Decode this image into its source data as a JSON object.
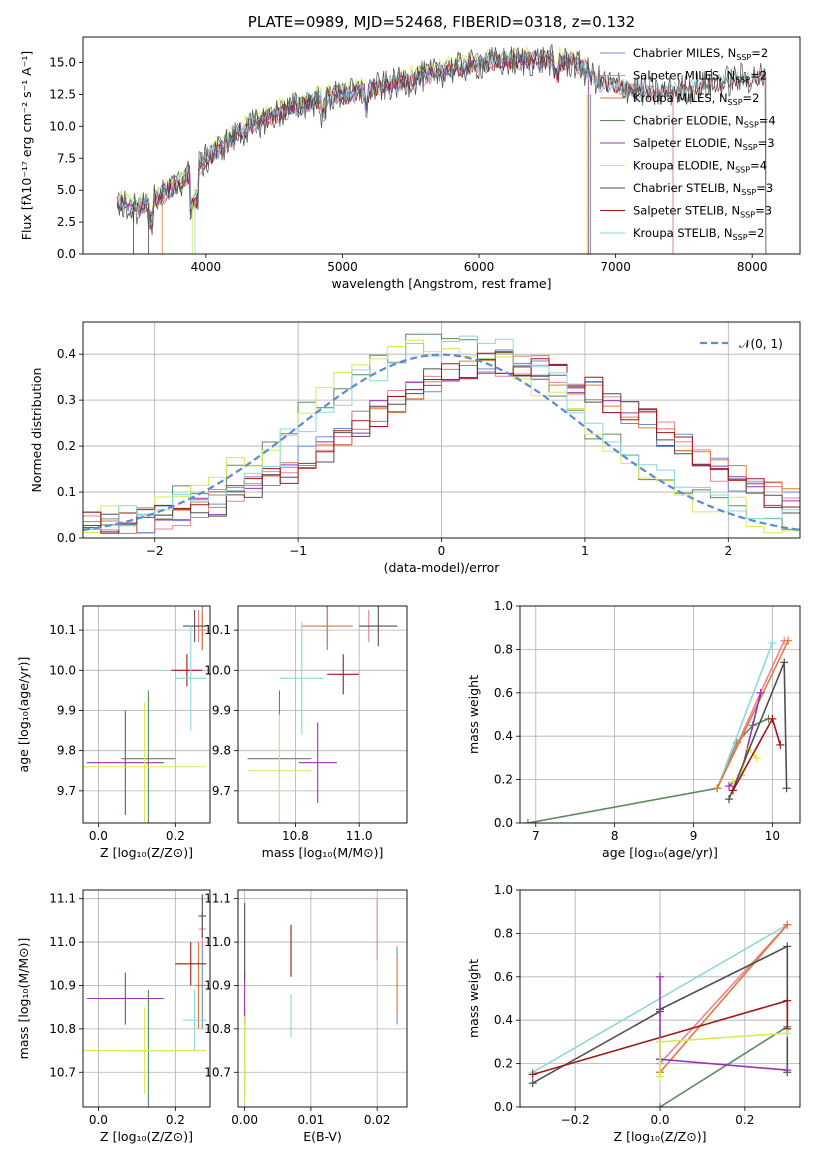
{
  "title": "PLATE=0989, MJD=52468, FIBERID=0318, z=0.132",
  "colors": {
    "Chabrier MILES": "#6a8fcf",
    "Salpeter MILES": "#e8849a",
    "Kroupa MILES": "#e07b3a",
    "Chabrier ELODIE": "#5b8a5e",
    "Salpeter ELODIE": "#9b33b5",
    "Kroupa ELODIE": "#d8ea5a",
    "Chabrier STELIB": "#505050",
    "Salpeter STELIB": "#a01818",
    "Kroupa STELIB": "#8ad8dc",
    "normal": "#5b8ad6"
  },
  "chart_data": [
    {
      "id": "spectrum",
      "type": "line",
      "xlabel": "wavelength [Angstrom, rest frame]",
      "ylabel": "Flux [fλ10⁻¹⁷ erg cm⁻² s⁻¹ A⁻¹]",
      "xlim": [
        3100,
        8350
      ],
      "ylim": [
        0,
        17
      ],
      "xticks": [
        "4000",
        "5000",
        "6000",
        "7000",
        "8000"
      ],
      "yticks": [
        "0.0",
        "2.5",
        "5.0",
        "7.5",
        "10.0",
        "12.5",
        "15.0"
      ],
      "grid": false,
      "legend": "right",
      "legend_entries": [
        {
          "name": "Chabrier MILES",
          "nssp": "2"
        },
        {
          "name": "Salpeter MILES",
          "nssp": "2"
        },
        {
          "name": "Kroupa MILES",
          "nssp": "2"
        },
        {
          "name": "Chabrier ELODIE",
          "nssp": "4"
        },
        {
          "name": "Salpeter ELODIE",
          "nssp": "3"
        },
        {
          "name": "Kroupa ELODIE",
          "nssp": "4"
        },
        {
          "name": "Chabrier STELIB",
          "nssp": "3"
        },
        {
          "name": "Salpeter STELIB",
          "nssp": "3"
        },
        {
          "name": "Kroupa STELIB",
          "nssp": "2"
        }
      ],
      "continuum": {
        "x": [
          3350,
          3500,
          3700,
          3900,
          4100,
          4300,
          4500,
          4700,
          4900,
          5100,
          5300,
          5500,
          5700,
          5900,
          6100,
          6300,
          6500,
          6700,
          6900,
          7100,
          7300,
          7500,
          7700,
          7900,
          8100
        ],
        "y": [
          3.9,
          3.6,
          4.7,
          6.4,
          8.3,
          9.8,
          10.9,
          11.7,
          12.3,
          12.6,
          13.1,
          13.6,
          14.2,
          14.7,
          15.0,
          15.1,
          15.2,
          14.9,
          13.4,
          13.0,
          12.6,
          12.9,
          13.3,
          13.7,
          13.9
        ]
      }
    },
    {
      "id": "residuals",
      "type": "step",
      "xlabel": "(data-model)/error",
      "ylabel": "Normed distribution",
      "xlim": [
        -2.5,
        2.5
      ],
      "ylim": [
        0,
        0.47
      ],
      "xticks": [
        "−2",
        "−1",
        "0",
        "1",
        "2"
      ],
      "yticks": [
        "0.0",
        "0.1",
        "0.2",
        "0.3",
        "0.4"
      ],
      "grid": true,
      "legend": "top-right",
      "legend_label": "𝒩(0, 1)",
      "bins": 40
    },
    {
      "id": "age-vs-Z",
      "type": "errorbar",
      "xlabel": "Z [log₁₀(Z/Z⊙)]",
      "ylabel": "age  [log₁₀(age/yr)]",
      "xlim": [
        -0.04,
        0.29
      ],
      "ylim": [
        9.62,
        10.16
      ],
      "xticks": [
        "0.0",
        "0.2"
      ],
      "yticks": [
        "9.7",
        "9.8",
        "9.9",
        "10.0",
        "10.1"
      ],
      "grid": true,
      "points": [
        {
          "series": "Chabrier MILES",
          "x": 0.27,
          "y": 10.11,
          "xerr": 0.01,
          "yerr": 0.06
        },
        {
          "series": "Salpeter MILES",
          "x": 0.26,
          "y": 10.11,
          "xerr": 0.01,
          "yerr": 0.04
        },
        {
          "series": "Kroupa MILES",
          "x": 0.27,
          "y": 10.1,
          "xerr": 0.01,
          "yerr": 0.05
        },
        {
          "series": "Chabrier ELODIE",
          "x": 0.13,
          "y": 9.78,
          "xerr": 0.07,
          "yerr": 0.17
        },
        {
          "series": "Salpeter ELODIE",
          "x": 0.07,
          "y": 9.77,
          "xerr": 0.1,
          "yerr": 0.13
        },
        {
          "series": "Kroupa ELODIE",
          "x": 0.12,
          "y": 9.76,
          "xerr": 0.16,
          "yerr": 0.16
        },
        {
          "series": "Chabrier STELIB",
          "x": 0.25,
          "y": 10.11,
          "xerr": 0.03,
          "yerr": 0.04
        },
        {
          "series": "Salpeter STELIB",
          "x": 0.23,
          "y": 10.0,
          "xerr": 0.04,
          "yerr": 0.04
        },
        {
          "series": "Kroupa STELIB",
          "x": 0.24,
          "y": 9.98,
          "xerr": 0.04,
          "yerr": 0.13
        }
      ]
    },
    {
      "id": "age-vs-mass",
      "type": "errorbar",
      "xlabel": "mass [log₁₀(M/M⊙)]",
      "ylabel": "",
      "xlim": [
        10.62,
        11.15
      ],
      "ylim": [
        9.62,
        10.16
      ],
      "xticks": [
        "10.8",
        "11.0"
      ],
      "yticks": [
        "9.7",
        "9.8",
        "9.9",
        "10.0",
        "10.1"
      ],
      "grid": true,
      "points": [
        {
          "series": "Chabrier MILES",
          "x": 10.9,
          "y": 10.11,
          "xerr": 0.02,
          "yerr": 0.06
        },
        {
          "series": "Salpeter MILES",
          "x": 11.03,
          "y": 10.11,
          "xerr": 0.02,
          "yerr": 0.04
        },
        {
          "series": "Kroupa MILES",
          "x": 10.9,
          "y": 10.11,
          "xerr": 0.08,
          "yerr": 0.05
        },
        {
          "series": "Chabrier ELODIE",
          "x": 10.75,
          "y": 9.78,
          "xerr": 0.1,
          "yerr": 0.17
        },
        {
          "series": "Salpeter ELODIE",
          "x": 10.87,
          "y": 9.77,
          "xerr": 0.06,
          "yerr": 0.1
        },
        {
          "series": "Kroupa ELODIE",
          "x": 10.75,
          "y": 9.75,
          "xerr": 0.1,
          "yerr": 0.14
        },
        {
          "series": "Chabrier STELIB",
          "x": 11.06,
          "y": 10.11,
          "xerr": 0.06,
          "yerr": 0.05
        },
        {
          "series": "Salpeter STELIB",
          "x": 10.95,
          "y": 9.99,
          "xerr": 0.05,
          "yerr": 0.05
        },
        {
          "series": "Kroupa STELIB",
          "x": 10.82,
          "y": 9.98,
          "xerr": 0.07,
          "yerr": 0.14
        }
      ]
    },
    {
      "id": "mass-weight-vs-age",
      "type": "line",
      "xlabel": "age  [log₁₀(age/yr)]",
      "ylabel": "mass weight",
      "xlim": [
        6.8,
        10.35
      ],
      "ylim": [
        0,
        1
      ],
      "xticks": [
        "7",
        "8",
        "9",
        "10"
      ],
      "yticks": [
        "0.0",
        "0.2",
        "0.4",
        "0.6",
        "0.8",
        "1.0"
      ],
      "grid": true,
      "series": [
        {
          "name": "Chabrier ELODIE",
          "x": [
            6.9,
            9.3,
            9.55,
            9.75,
            9.95
          ],
          "y": [
            0.0,
            0.16,
            0.37,
            0.45,
            0.48
          ]
        },
        {
          "name": "Salpeter MILES",
          "x": [
            9.3,
            10.15
          ],
          "y": [
            0.16,
            0.84
          ]
        },
        {
          "name": "Kroupa STELIB",
          "x": [
            9.3,
            10.0
          ],
          "y": [
            0.16,
            0.83
          ]
        },
        {
          "name": "Kroupa MILES",
          "x": [
            9.3,
            10.2
          ],
          "y": [
            0.16,
            0.84
          ]
        },
        {
          "name": "Salpeter ELODIE",
          "x": [
            9.45,
            9.6,
            9.85
          ],
          "y": [
            0.17,
            0.22,
            0.6
          ]
        },
        {
          "name": "Kroupa ELODIE",
          "x": [
            9.5,
            9.6,
            9.7,
            9.8
          ],
          "y": [
            0.19,
            0.22,
            0.34,
            0.3
          ]
        },
        {
          "name": "Chabrier STELIB",
          "x": [
            9.45,
            10.15,
            10.18
          ],
          "y": [
            0.11,
            0.74,
            0.16
          ]
        },
        {
          "name": "Salpeter STELIB",
          "x": [
            9.5,
            10.0,
            10.1
          ],
          "y": [
            0.15,
            0.48,
            0.36
          ]
        }
      ]
    },
    {
      "id": "mass-vs-Z",
      "type": "errorbar",
      "xlabel": "Z [log₁₀(Z/Z⊙)]",
      "ylabel": "mass [log₁₀(M/M⊙)]",
      "xlim": [
        -0.04,
        0.29
      ],
      "ylim": [
        10.62,
        11.12
      ],
      "xticks": [
        "0.0",
        "0.2"
      ],
      "yticks": [
        "10.7",
        "10.8",
        "10.9",
        "11.0",
        "11.1"
      ],
      "grid": true,
      "points": [
        {
          "series": "Chabrier MILES",
          "x": 0.27,
          "y": 10.9,
          "xerr": 0.01,
          "yerr": 0.1
        },
        {
          "series": "Salpeter MILES",
          "x": 0.27,
          "y": 11.03,
          "xerr": 0.01,
          "yerr": 0.04
        },
        {
          "series": "Kroupa MILES",
          "x": 0.26,
          "y": 10.9,
          "xerr": 0.01,
          "yerr": 0.1
        },
        {
          "series": "Chabrier ELODIE",
          "x": 0.13,
          "y": 10.75,
          "xerr": 0.07,
          "yerr": 0.14
        },
        {
          "series": "Salpeter ELODIE",
          "x": 0.07,
          "y": 10.87,
          "xerr": 0.1,
          "yerr": 0.06
        },
        {
          "series": "Kroupa ELODIE",
          "x": 0.12,
          "y": 10.75,
          "xerr": 0.16,
          "yerr": 0.1
        },
        {
          "series": "Chabrier STELIB",
          "x": 0.27,
          "y": 11.06,
          "xerr": 0.01,
          "yerr": 0.05
        },
        {
          "series": "Salpeter STELIB",
          "x": 0.24,
          "y": 10.95,
          "xerr": 0.04,
          "yerr": 0.05
        },
        {
          "series": "Kroupa STELIB",
          "x": 0.25,
          "y": 10.82,
          "xerr": 0.03,
          "yerr": 0.07
        }
      ]
    },
    {
      "id": "mass-vs-ebv",
      "type": "errorbar",
      "xlabel": "E(B-V)",
      "ylabel": "",
      "xlim": [
        -0.001,
        0.0245
      ],
      "ylim": [
        10.62,
        11.12
      ],
      "xticks": [
        "0.00",
        "0.01",
        "0.02"
      ],
      "yticks": [
        "10.7",
        "10.8",
        "10.9",
        "11.0",
        "11.1"
      ],
      "grid": true,
      "points": [
        {
          "series": "Chabrier MILES",
          "x": 0.023,
          "y": 10.9,
          "xerr": 0,
          "yerr": 0.09
        },
        {
          "series": "Salpeter MILES",
          "x": 0.02,
          "y": 11.03,
          "xerr": 0,
          "yerr": 0.07
        },
        {
          "series": "Kroupa MILES",
          "x": 0.023,
          "y": 10.9,
          "xerr": 0,
          "yerr": 0.07
        },
        {
          "series": "Chabrier ELODIE",
          "x": 0.0,
          "y": 10.75,
          "xerr": 0,
          "yerr": 0.1
        },
        {
          "series": "Salpeter ELODIE",
          "x": 0.0,
          "y": 10.87,
          "xerr": 0,
          "yerr": 0.06
        },
        {
          "series": "Kroupa ELODIE",
          "x": 0.0,
          "y": 10.73,
          "xerr": 0,
          "yerr": 0.1
        },
        {
          "series": "Chabrier STELIB",
          "x": 0.0,
          "y": 11.0,
          "xerr": 0,
          "yerr": 0.09
        },
        {
          "series": "Salpeter STELIB",
          "x": 0.007,
          "y": 10.98,
          "xerr": 0,
          "yerr": 0.06
        },
        {
          "series": "Kroupa STELIB",
          "x": 0.007,
          "y": 10.83,
          "xerr": 0,
          "yerr": 0.05
        }
      ]
    },
    {
      "id": "mass-weight-vs-Z",
      "type": "line",
      "xlabel": "Z [log₁₀(Z/Z⊙)]",
      "ylabel": "mass weight",
      "xlim": [
        -0.33,
        0.33
      ],
      "ylim": [
        0,
        1
      ],
      "xticks": [
        "−0.2",
        "0.0",
        "0.2"
      ],
      "yticks": [
        "0.0",
        "0.2",
        "0.4",
        "0.6",
        "0.8",
        "1.0"
      ],
      "grid": true,
      "series": [
        {
          "name": "Chabrier ELODIE",
          "x": [
            0.0,
            0.3
          ],
          "y": [
            0.0,
            0.37
          ]
        },
        {
          "name": "Kroupa STELIB",
          "x": [
            -0.3,
            0.3
          ],
          "y": [
            0.16,
            0.84
          ]
        },
        {
          "name": "Salpeter MILES",
          "x": [
            0.0,
            0.0,
            0.3
          ],
          "y": [
            0.16,
            0.2,
            0.84
          ]
        },
        {
          "name": "Kroupa MILES",
          "x": [
            0.0,
            0.3
          ],
          "y": [
            0.16,
            0.84
          ]
        },
        {
          "name": "Chabrier STELIB",
          "x": [
            -0.3,
            0.0,
            0.0,
            0.3,
            0.3
          ],
          "y": [
            0.11,
            0.44,
            0.45,
            0.74,
            0.16
          ]
        },
        {
          "name": "Salpeter STELIB",
          "x": [
            -0.3,
            0.3,
            0.3
          ],
          "y": [
            0.15,
            0.49,
            0.36
          ]
        },
        {
          "name": "Salpeter ELODIE",
          "x": [
            0.0,
            0.0,
            0.0,
            0.3
          ],
          "y": [
            0.6,
            0.22,
            0.22,
            0.17
          ]
        },
        {
          "name": "Kroupa ELODIE",
          "x": [
            0.0,
            0.0,
            0.3
          ],
          "y": [
            0.14,
            0.3,
            0.34
          ]
        }
      ]
    }
  ]
}
